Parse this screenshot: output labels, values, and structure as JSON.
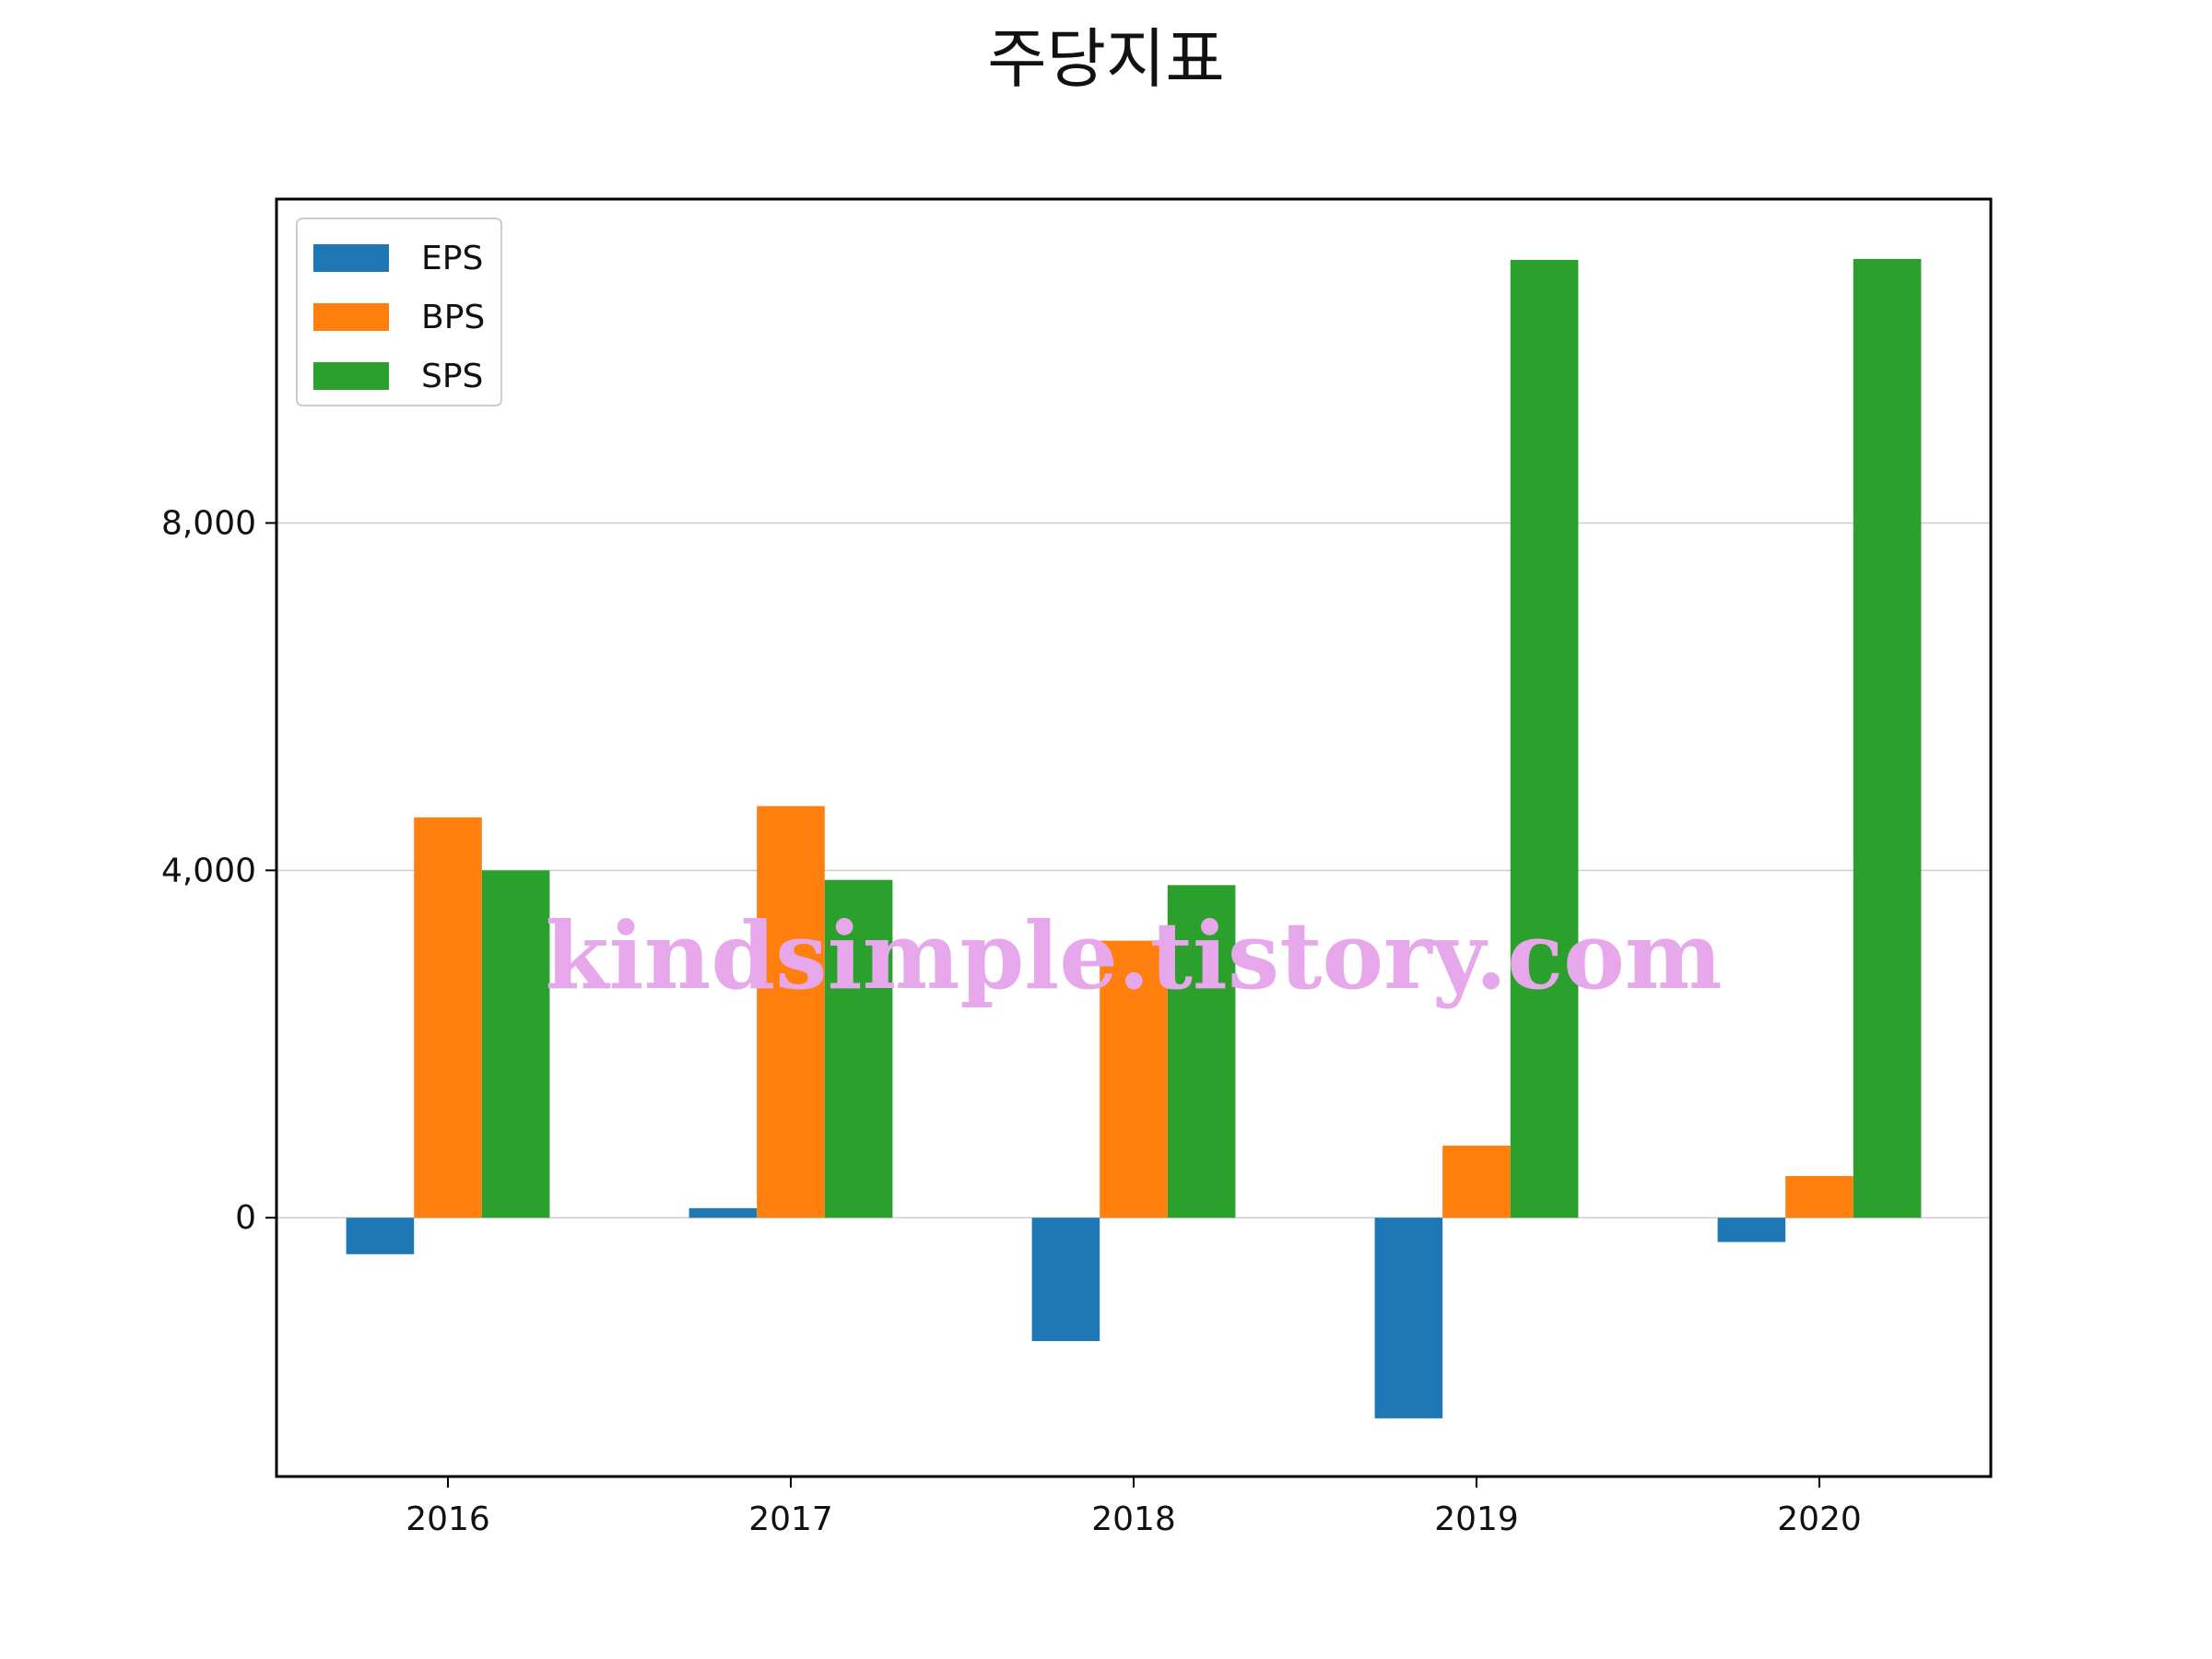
{
  "chart_data": {
    "type": "bar",
    "title": "주당지표",
    "categories": [
      "2016",
      "2017",
      "2018",
      "2019",
      "2020"
    ],
    "series": [
      {
        "name": "EPS",
        "color": "#1f77b4",
        "values": [
          -420,
          110,
          -1420,
          -2310,
          -280
        ]
      },
      {
        "name": "BPS",
        "color": "#ff7f0e",
        "values": [
          4610,
          4740,
          3190,
          830,
          480
        ]
      },
      {
        "name": "SPS",
        "color": "#2ca02c",
        "values": [
          4000,
          3890,
          3830,
          11030,
          11040
        ]
      }
    ],
    "yticks": [
      0,
      4000,
      8000
    ],
    "ytick_labels": [
      "0",
      "4,000",
      "8,000"
    ],
    "ylim": [
      -2980,
      11730
    ],
    "grid": "horizontal",
    "legend_position": "top-left",
    "watermark": "kindsimple.tistory.com"
  }
}
